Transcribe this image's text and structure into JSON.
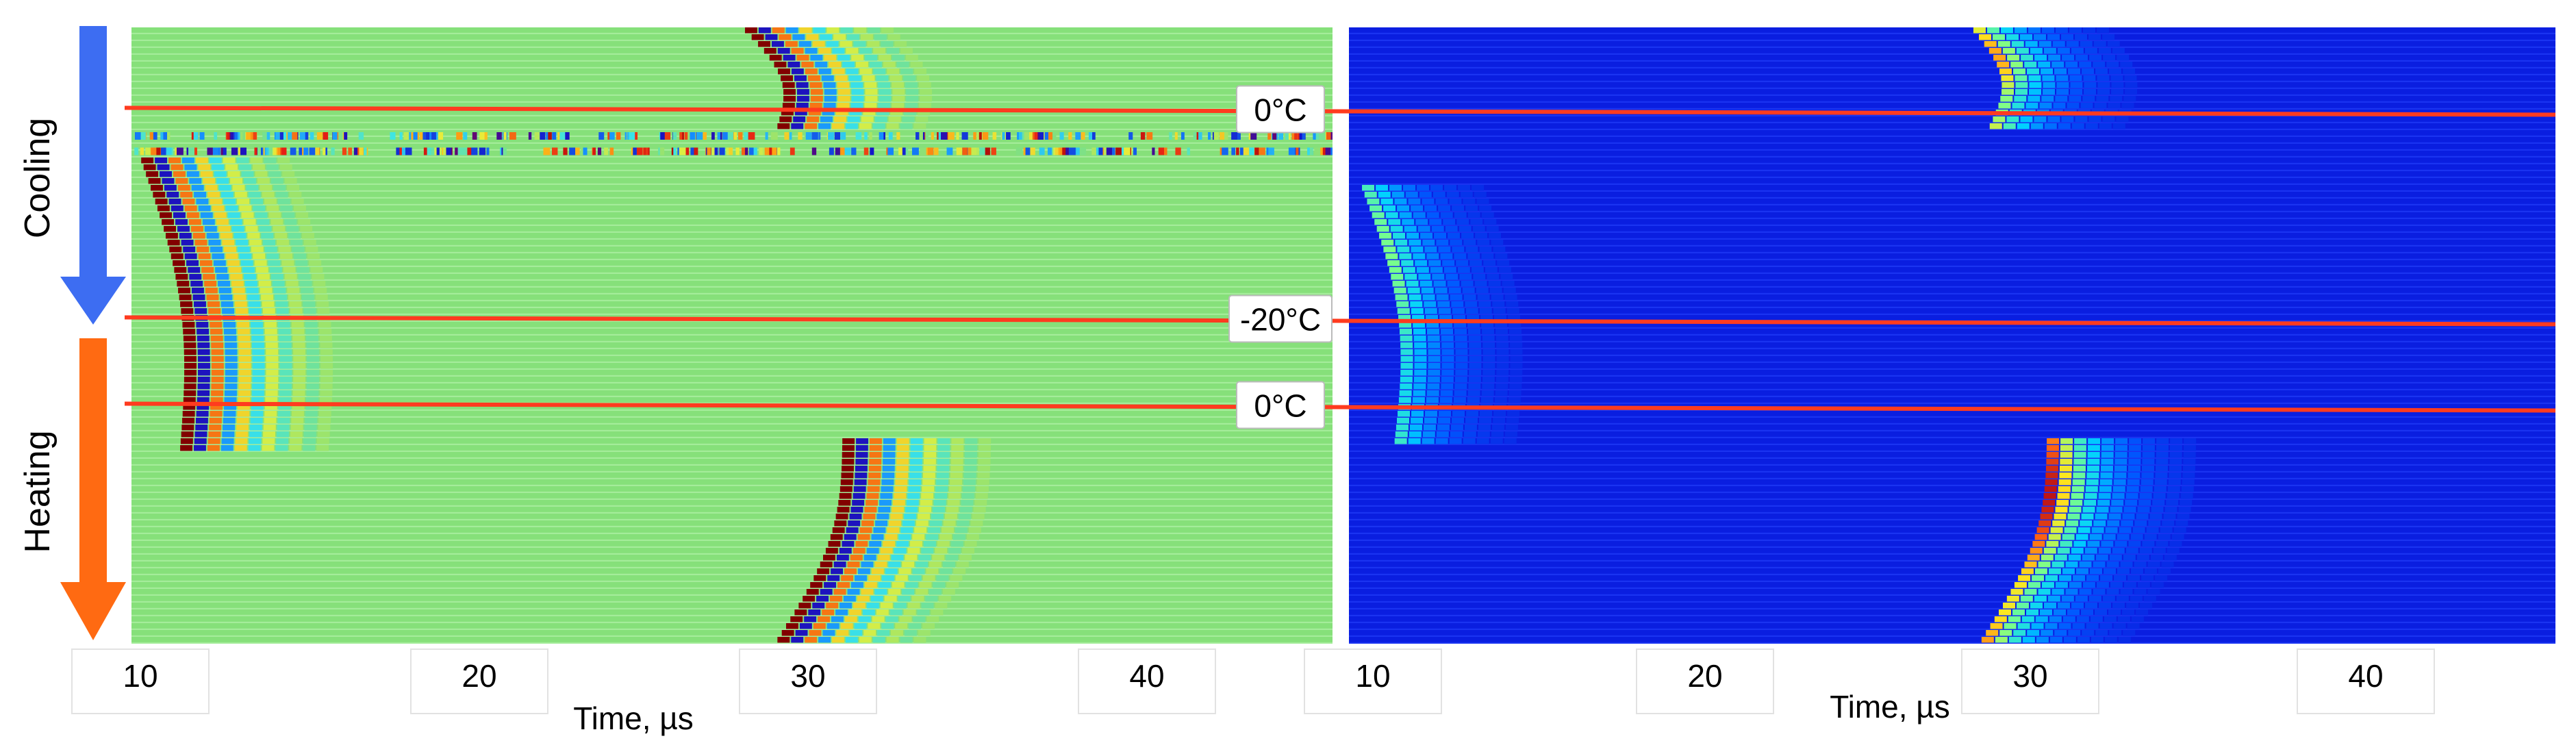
{
  "chart_data": [
    {
      "type": "heatmap",
      "panel": "left",
      "colormap": "diverging (blue-cyan-green-yellow-red), green background",
      "xlabel": "Time, µs",
      "xticks": [
        "10",
        "20",
        "30",
        "40"
      ],
      "xlim": [
        9,
        46
      ],
      "background_color": "#86e07a",
      "trace_bands": [
        {
          "x_center": 29,
          "trace_start": 0.0,
          "trace_end": 0.16,
          "drift_us": 1.0,
          "strength": 1.0
        },
        {
          "x_center": 10.5,
          "trace_start": 0.22,
          "trace_end": 0.68,
          "drift_us": 1.2,
          "strength": 1.0
        },
        {
          "x_center": 30.5,
          "trace_start": 0.67,
          "trace_end": 1.0,
          "drift_us": -2.0,
          "strength": 1.0
        }
      ],
      "noise_rows": [
        0.17,
        0.195
      ]
    },
    {
      "type": "heatmap",
      "panel": "right",
      "colormap": "jet (blue low, red high), blue background",
      "xlabel": "Time, µs",
      "xticks": [
        "10",
        "20",
        "30",
        "40"
      ],
      "xlim": [
        9,
        46
      ],
      "background_color": "#0a1ee0",
      "trace_bands": [
        {
          "x_center": 29,
          "trace_start": 0.0,
          "trace_end": 0.16,
          "drift_us": 0.5,
          "strength": 0.8
        },
        {
          "x_center": 10.5,
          "trace_start": 0.26,
          "trace_end": 0.67,
          "drift_us": 1.0,
          "strength": 0.55
        },
        {
          "x_center": 30.0,
          "trace_start": 0.67,
          "trace_end": 1.0,
          "drift_us": -2.0,
          "strength": 1.0
        }
      ]
    }
  ],
  "temperature_markers": [
    {
      "label": "0°C",
      "level": 0.135
    },
    {
      "label": "-20°C",
      "level": 0.475
    },
    {
      "label": "0°C",
      "level": 0.615
    }
  ],
  "side_labels": {
    "cooling": "Cooling",
    "heating": "Heating"
  },
  "colors": {
    "cooling_arrow": "#3d6df2",
    "heating_arrow": "#ff6a12",
    "marker_line": "#ff3b1f"
  },
  "tick_text": {
    "left": [
      "10",
      "20",
      "30",
      "40"
    ],
    "right": [
      "10",
      "20",
      "30",
      "40"
    ]
  },
  "axis_titles": {
    "left": "Time, µs",
    "right": "Time, µs"
  }
}
